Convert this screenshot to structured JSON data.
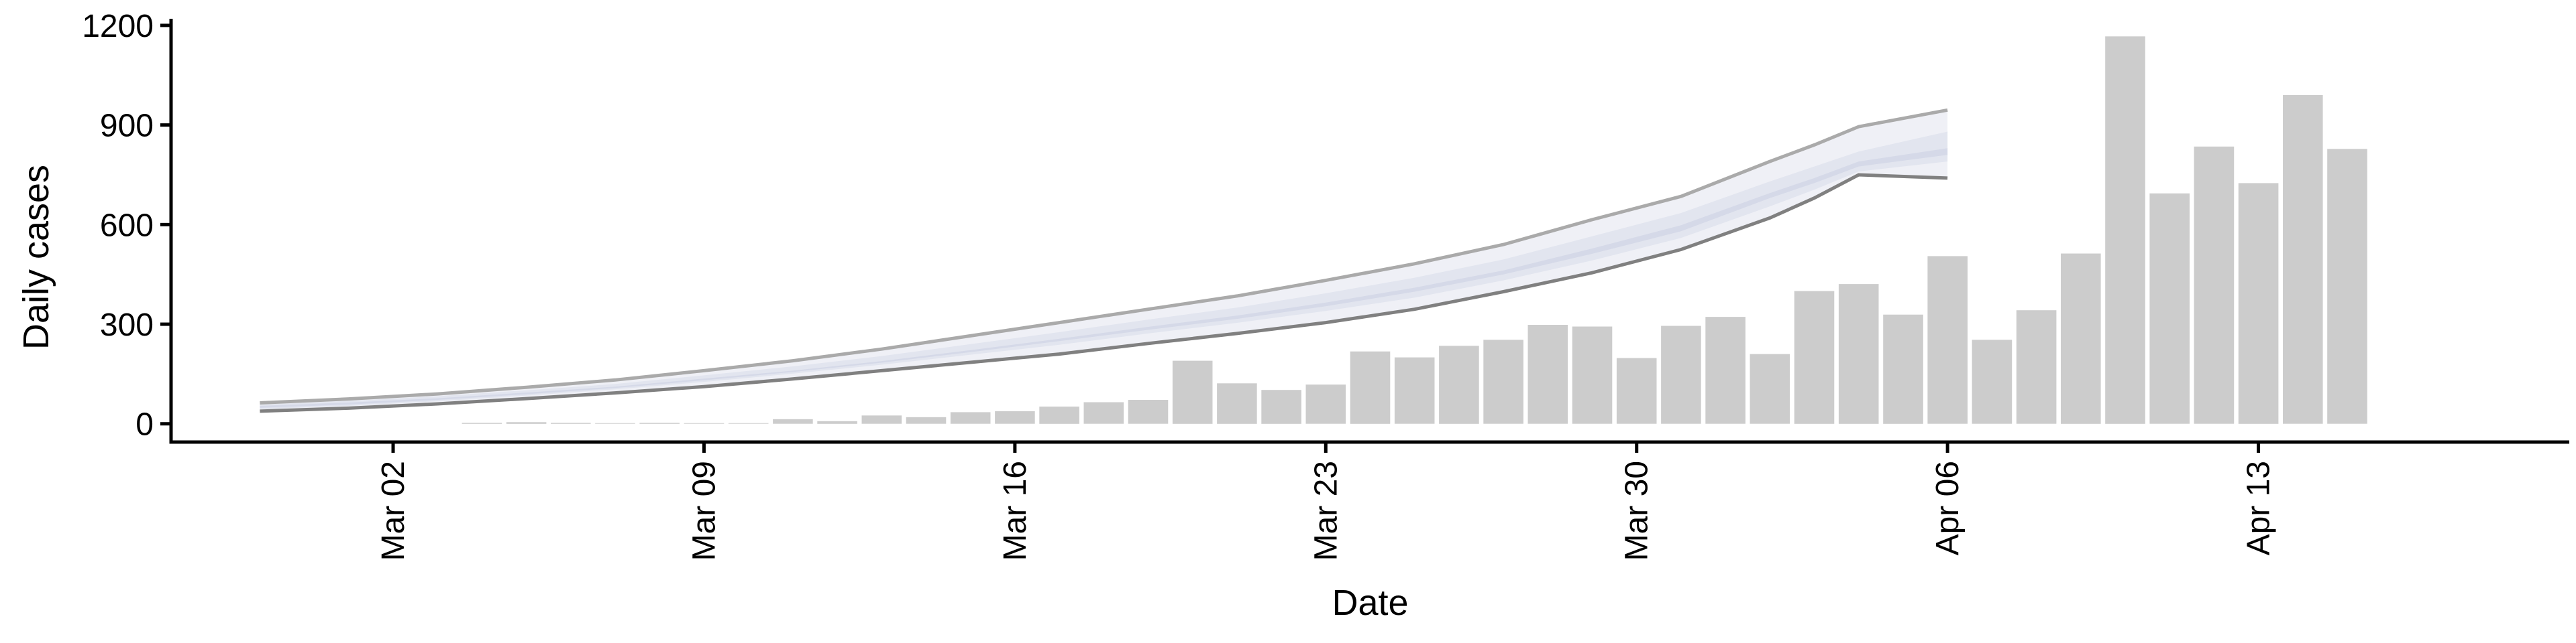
{
  "chart_data": {
    "type": "bar",
    "title": "",
    "xlabel": "Date",
    "ylabel": "Daily cases",
    "ylim": [
      -55,
      1220
    ],
    "xlim": [
      "2020-02-26",
      "2020-04-20"
    ],
    "grid": false,
    "legend": "none",
    "x_ticks": [
      "2020-03-02",
      "2020-03-09",
      "2020-03-16",
      "2020-03-23",
      "2020-03-30",
      "2020-04-06",
      "2020-04-13"
    ],
    "x_tick_labels": [
      "Mar 02",
      "Mar 09",
      "Mar 16",
      "Mar 23",
      "Mar 30",
      "Apr 06",
      "Apr 13"
    ],
    "y_ticks": [
      0,
      300,
      600,
      900,
      1200
    ],
    "y_tick_labels": [
      "0",
      "300",
      "600",
      "900",
      "1200"
    ],
    "bars": {
      "dates": [
        "2020-03-04",
        "2020-03-05",
        "2020-03-06",
        "2020-03-07",
        "2020-03-08",
        "2020-03-09",
        "2020-03-10",
        "2020-03-11",
        "2020-03-12",
        "2020-03-13",
        "2020-03-14",
        "2020-03-15",
        "2020-03-16",
        "2020-03-17",
        "2020-03-18",
        "2020-03-19",
        "2020-03-20",
        "2020-03-21",
        "2020-03-22",
        "2020-03-23",
        "2020-03-24",
        "2020-03-25",
        "2020-03-26",
        "2020-03-27",
        "2020-03-28",
        "2020-03-29",
        "2020-03-30",
        "2020-03-31",
        "2020-04-01",
        "2020-04-02",
        "2020-04-03",
        "2020-04-04",
        "2020-04-05",
        "2020-04-06",
        "2020-04-07",
        "2020-04-08",
        "2020-04-09",
        "2020-04-10",
        "2020-04-11",
        "2020-04-12",
        "2020-04-13",
        "2020-04-14",
        "2020-04-15"
      ],
      "values": [
        3,
        5,
        3,
        0,
        3,
        0,
        0,
        14,
        8,
        25,
        20,
        35,
        38,
        52,
        65,
        72,
        190,
        122,
        102,
        118,
        218,
        200,
        235,
        253,
        298,
        293,
        198,
        295,
        322,
        210,
        400,
        421,
        329,
        505,
        253,
        342,
        513,
        1167,
        694,
        835,
        725,
        990,
        828
      ],
      "color": "#cccccc"
    },
    "ribbons": {
      "dates": [
        "2020-02-28",
        "2020-03-01",
        "2020-03-03",
        "2020-03-05",
        "2020-03-07",
        "2020-03-09",
        "2020-03-11",
        "2020-03-13",
        "2020-03-15",
        "2020-03-17",
        "2020-03-19",
        "2020-03-21",
        "2020-03-23",
        "2020-03-25",
        "2020-03-27",
        "2020-03-29",
        "2020-03-31",
        "2020-04-02",
        "2020-04-03",
        "2020-04-04",
        "2020-04-06"
      ],
      "outer_upper": [
        63,
        75,
        90,
        110,
        132,
        160,
        190,
        225,
        265,
        305,
        345,
        385,
        432,
        482,
        540,
        615,
        685,
        790,
        840,
        895,
        945
      ],
      "outer_lower": [
        38,
        47,
        60,
        76,
        93,
        112,
        135,
        160,
        185,
        210,
        242,
        272,
        305,
        345,
        398,
        455,
        525,
        620,
        680,
        750,
        740
      ],
      "mid_upper": [
        58,
        69,
        83,
        101,
        120,
        146,
        173,
        204,
        240,
        276,
        314,
        350,
        393,
        440,
        495,
        565,
        635,
        730,
        775,
        820,
        880
      ],
      "mid_lower": [
        44,
        54,
        68,
        85,
        104,
        126,
        151,
        178,
        208,
        238,
        272,
        304,
        340,
        380,
        432,
        492,
        560,
        655,
        705,
        760,
        790
      ],
      "inner_upper": [
        54,
        64,
        77,
        94,
        112,
        136,
        160,
        189,
        222,
        256,
        292,
        326,
        365,
        410,
        462,
        528,
        598,
        695,
        740,
        790,
        830
      ],
      "inner_lower": [
        48,
        58,
        72,
        89,
        108,
        131,
        156,
        184,
        216,
        249,
        283,
        316,
        354,
        398,
        450,
        512,
        580,
        680,
        725,
        775,
        810
      ],
      "line_upper": [
        63,
        75,
        90,
        110,
        132,
        160,
        190,
        225,
        265,
        305,
        345,
        385,
        432,
        482,
        540,
        615,
        685,
        790,
        840,
        895,
        945
      ],
      "line_lower": [
        38,
        47,
        60,
        76,
        93,
        112,
        135,
        160,
        185,
        210,
        242,
        272,
        305,
        345,
        398,
        455,
        525,
        620,
        680,
        750,
        740
      ],
      "colors": {
        "outer": "#eff0f6",
        "mid": "#e2e5ef",
        "inner": "#d5d9e8",
        "upper_line": "#aaaaaa",
        "lower_line": "#808080"
      }
    }
  }
}
